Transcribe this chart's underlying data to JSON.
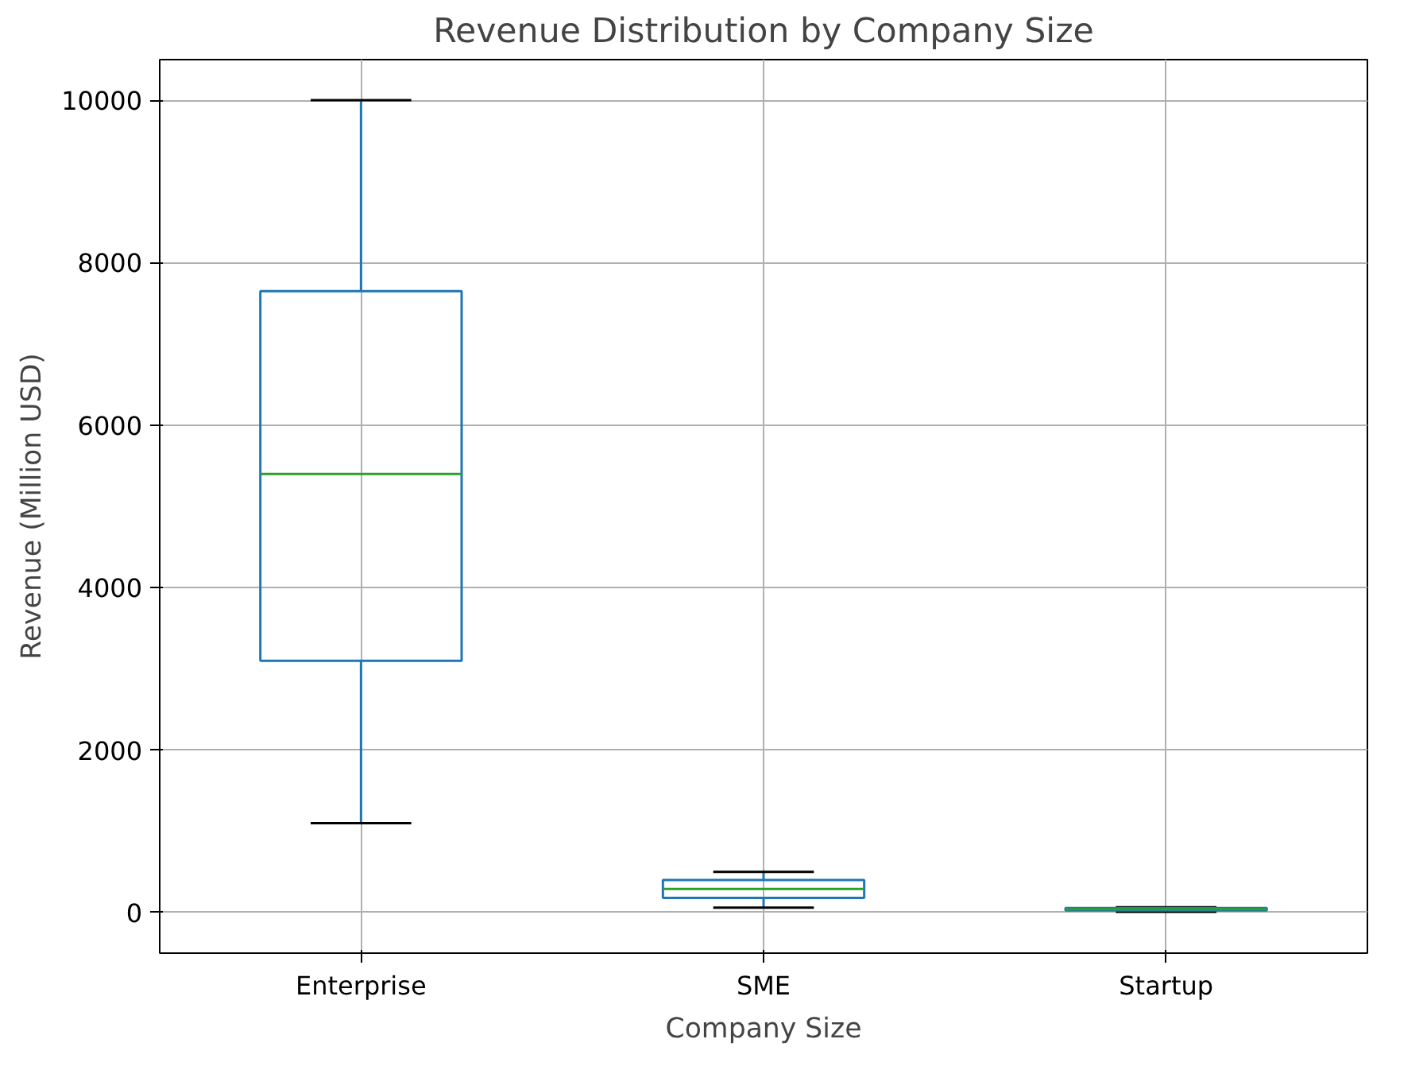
{
  "chart_data": {
    "type": "box",
    "title": "Revenue Distribution by Company Size",
    "xlabel": "Company Size",
    "ylabel": "Revenue (Million USD)",
    "categories": [
      "Enterprise",
      "SME",
      "Startup"
    ],
    "series": [
      {
        "color": "#1f77b4",
        "boxes": [
          {
            "low": 1100,
            "q1": 3100,
            "median": 5400,
            "q3": 7650,
            "high": 10000
          },
          {
            "low": 60,
            "q1": 180,
            "median": 290,
            "q3": 400,
            "high": 500
          },
          {
            "low": 10,
            "q1": 25,
            "median": 40,
            "q3": 55,
            "high": 65
          }
        ]
      }
    ],
    "ylim": [
      -500,
      10500
    ],
    "yticks": [
      0,
      2000,
      4000,
      6000,
      8000,
      10000
    ],
    "grid": true
  }
}
